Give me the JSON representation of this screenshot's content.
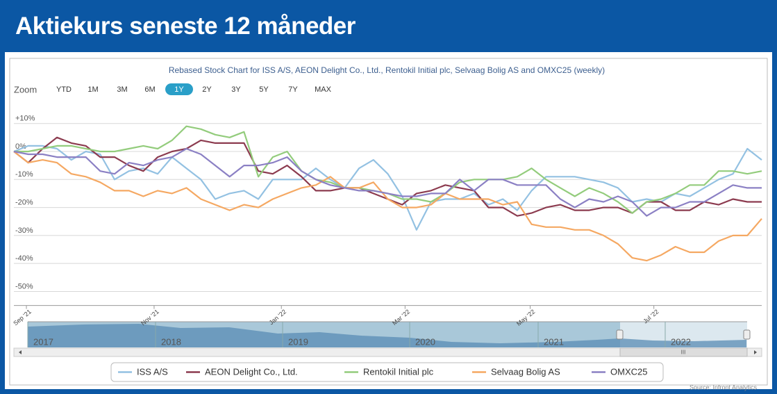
{
  "header": {
    "title": "Aktiekurs seneste 12 måneder"
  },
  "chart_data": {
    "type": "line",
    "title": "Rebased Stock Chart for ISS A/S, AEON Delight Co., Ltd., Rentokil Initial plc, Selvaag Bolig AS and OMXC25 (weekly)",
    "x": [
      0,
      1,
      2,
      3,
      4,
      5,
      6,
      7,
      8,
      9,
      10,
      11,
      12,
      13,
      14,
      15,
      16,
      17,
      18,
      19,
      20,
      21,
      22,
      23,
      24,
      25,
      26,
      27,
      28,
      29,
      30,
      31,
      32,
      33,
      34,
      35,
      36,
      37,
      38,
      39,
      40,
      41,
      42,
      43,
      44,
      45,
      46,
      47,
      48,
      49,
      50,
      51,
      52
    ],
    "xlim": [
      0,
      52
    ],
    "xticks": [
      {
        "value": 0.87,
        "label": "Sep '21"
      },
      {
        "value": 9.75,
        "label": "Nov '21"
      },
      {
        "value": 18.6,
        "label": "Jan '22"
      },
      {
        "value": 27.2,
        "label": "Mar '22"
      },
      {
        "value": 35.9,
        "label": "May '22"
      },
      {
        "value": 44.5,
        "label": "Jul '22"
      }
    ],
    "ylim": [
      -55,
      17
    ],
    "yticks": [
      {
        "value": 10,
        "label": "+10%"
      },
      {
        "value": 0,
        "label": "0%"
      },
      {
        "value": -10,
        "label": "-10%"
      },
      {
        "value": -20,
        "label": "-20%"
      },
      {
        "value": -30,
        "label": "-30%"
      },
      {
        "value": -40,
        "label": "-40%"
      },
      {
        "value": -50,
        "label": "-50%"
      }
    ],
    "grid": true,
    "series": [
      {
        "name": "ISS A/S",
        "color": "#93c1e2",
        "values": [
          0,
          2,
          2,
          1,
          -3,
          0,
          -1,
          -10,
          -7,
          -6,
          -8,
          -2,
          -6,
          -10,
          -17,
          -15,
          -14,
          -17,
          -10,
          -10,
          -10,
          -6,
          -10,
          -13,
          -6,
          -3,
          -8,
          -16,
          -28,
          -18,
          -17,
          -17,
          -15,
          -19,
          -17,
          -21,
          -14,
          -9,
          -9,
          -9,
          -10,
          -11,
          -13,
          -18,
          -17,
          -18,
          -15,
          -16,
          -13,
          -10,
          -8,
          1,
          -3
        ]
      },
      {
        "name": "AEON Delight Co., Ltd.",
        "color": "#8c3b4f",
        "values": [
          0,
          -4,
          1,
          5,
          3,
          2,
          -2,
          -2,
          -5,
          -7,
          -2,
          0,
          1,
          4,
          3,
          3,
          3,
          -7,
          -8,
          -5,
          -9,
          -14,
          -14,
          -13,
          -13,
          -15,
          -17,
          -19,
          -15,
          -14,
          -12,
          -13,
          -14,
          -20,
          -20,
          -23,
          -22,
          -20,
          -19,
          -21,
          -21,
          -20,
          -20,
          -22,
          -18,
          -18,
          -21,
          -21,
          -18,
          -19,
          -17,
          -18,
          -18
        ]
      },
      {
        "name": "Rentokil Initial plc",
        "color": "#93cc7c",
        "values": [
          0,
          0,
          1,
          2,
          2,
          1,
          0,
          0,
          1,
          2,
          1,
          4,
          9,
          8,
          6,
          5,
          7,
          -9,
          -2,
          0,
          -7,
          -10,
          -11,
          -13,
          -13,
          -14,
          -15,
          -17,
          -17,
          -18,
          -15,
          -11,
          -10,
          -10,
          -10,
          -9,
          -6,
          -10,
          -13,
          -16,
          -13,
          -15,
          -18,
          -22,
          -18,
          -17,
          -15,
          -12,
          -12,
          -7,
          -7,
          -8,
          -7
        ]
      },
      {
        "name": "Selvaag Bolig AS",
        "color": "#f5a862",
        "values": [
          0,
          -4,
          -3,
          -4,
          -8,
          -9,
          -11,
          -14,
          -14,
          -16,
          -14,
          -15,
          -13,
          -17,
          -19,
          -21,
          -19,
          -20,
          -17,
          -15,
          -13,
          -12,
          -9,
          -13,
          -13,
          -11,
          -17,
          -20,
          -20,
          -19,
          -15,
          -17,
          -17,
          -17,
          -19,
          -18,
          -26,
          -27,
          -27,
          -28,
          -28,
          -30,
          -33,
          -38,
          -39,
          -37,
          -34,
          -36,
          -36,
          -32,
          -30,
          -30,
          -24
        ]
      },
      {
        "name": "OMXC25",
        "color": "#8b80c4",
        "values": [
          0,
          -1,
          -1,
          -2,
          -2,
          -2,
          -7,
          -8,
          -4,
          -5,
          -3,
          -2,
          1,
          -1,
          -5,
          -9,
          -5,
          -5,
          -4,
          -2,
          -7,
          -10,
          -12,
          -13,
          -14,
          -14,
          -15,
          -16,
          -16,
          -15,
          -15,
          -10,
          -14,
          -10,
          -10,
          -12,
          -12,
          -12,
          -17,
          -20,
          -17,
          -18,
          -16,
          -18,
          -23,
          -20,
          -20,
          -18,
          -18,
          -15,
          -12,
          -13,
          -13
        ]
      }
    ]
  },
  "zoom": {
    "label": "Zoom",
    "buttons": [
      "YTD",
      "1M",
      "3M",
      "6M",
      "1Y",
      "2Y",
      "3Y",
      "5Y",
      "7Y",
      "MAX"
    ],
    "selected": "1Y"
  },
  "navigator": {
    "labels": [
      "2017",
      "2018",
      "2019",
      "2020",
      "2021",
      "2022"
    ],
    "scroll_label": "III"
  },
  "source": "Source: Infront Analytics"
}
